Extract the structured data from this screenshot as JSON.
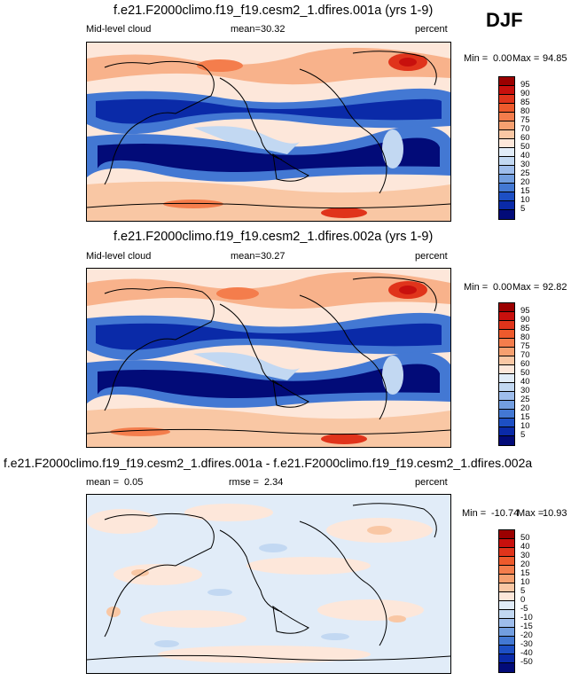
{
  "season": "DJF",
  "panels": [
    {
      "title": "f.e21.F2000climo.f19_f19.cesm2_1.dfires.001a (yrs 1-9)",
      "left": "Mid-level cloud",
      "mean_label": "mean=",
      "mean_value": "30.32",
      "units": "percent",
      "min_label": "Min =",
      "min_value": "0.00",
      "max_label": "Max =",
      "max_value": "94.85"
    },
    {
      "title": "f.e21.F2000climo.f19_f19.cesm2_1.dfires.002a (yrs 1-9)",
      "left": "Mid-level cloud",
      "mean_label": "mean=",
      "mean_value": "30.27",
      "units": "percent",
      "min_label": "Min =",
      "min_value": "0.00",
      "max_label": "Max =",
      "max_value": "92.82"
    },
    {
      "title": "f.e21.F2000climo.f19_f19.cesm2_1.dfires.001a - f.e21.F2000climo.f19_f19.cesm2_1.dfires.002a",
      "left_label": "mean =",
      "left_value": "0.05",
      "rmse_label": "rmse =",
      "rmse_value": "2.34",
      "units": "percent",
      "min_label": "Min =",
      "min_value": "-10.74",
      "max_label": "Max =",
      "max_value": "10.93"
    }
  ],
  "chart_data": [
    {
      "type": "heatmap",
      "variable": "Mid-level cloud",
      "season": "DJF",
      "units": "percent",
      "mean": 30.32,
      "min": 0.0,
      "max": 94.85,
      "colorbar_levels": [
        "95",
        "90",
        "85",
        "80",
        "75",
        "70",
        "60",
        "50",
        "40",
        "30",
        "25",
        "20",
        "15",
        "10",
        "5"
      ],
      "colorbar_colors": [
        "#9b0000",
        "#c8100d",
        "#e0341b",
        "#ee5a2c",
        "#f47d4c",
        "#f6a070",
        "#f9c7a4",
        "#fde7da",
        "#e1ecf8",
        "#c2d8f2",
        "#9ebdec",
        "#729ee0",
        "#4378d3",
        "#1d4fc4",
        "#0a2aa8",
        "#020b78"
      ]
    },
    {
      "type": "heatmap",
      "variable": "Mid-level cloud",
      "season": "DJF",
      "units": "percent",
      "mean": 30.27,
      "min": 0.0,
      "max": 92.82,
      "colorbar_levels": [
        "95",
        "90",
        "85",
        "80",
        "75",
        "70",
        "60",
        "50",
        "40",
        "30",
        "25",
        "20",
        "15",
        "10",
        "5"
      ],
      "colorbar_colors": [
        "#9b0000",
        "#c8100d",
        "#e0341b",
        "#ee5a2c",
        "#f47d4c",
        "#f6a070",
        "#f9c7a4",
        "#fde7da",
        "#e1ecf8",
        "#c2d8f2",
        "#9ebdec",
        "#729ee0",
        "#4378d3",
        "#1d4fc4",
        "#0a2aa8",
        "#020b78"
      ]
    },
    {
      "type": "heatmap",
      "variable": "difference (001a - 002a)",
      "season": "DJF",
      "units": "percent",
      "mean": 0.05,
      "rmse": 2.34,
      "min": -10.74,
      "max": 10.93,
      "colorbar_levels": [
        "50",
        "40",
        "30",
        "20",
        "15",
        "10",
        "5",
        "0",
        "-5",
        "-10",
        "-15",
        "-20",
        "-30",
        "-40",
        "-50"
      ],
      "colorbar_colors": [
        "#9b0000",
        "#c8100d",
        "#e0341b",
        "#ee5a2c",
        "#f47d4c",
        "#f6a070",
        "#f9c7a4",
        "#fde7da",
        "#e1ecf8",
        "#c2d8f2",
        "#9ebdec",
        "#729ee0",
        "#4378d3",
        "#1d4fc4",
        "#0a2aa8",
        "#020b78"
      ]
    }
  ]
}
